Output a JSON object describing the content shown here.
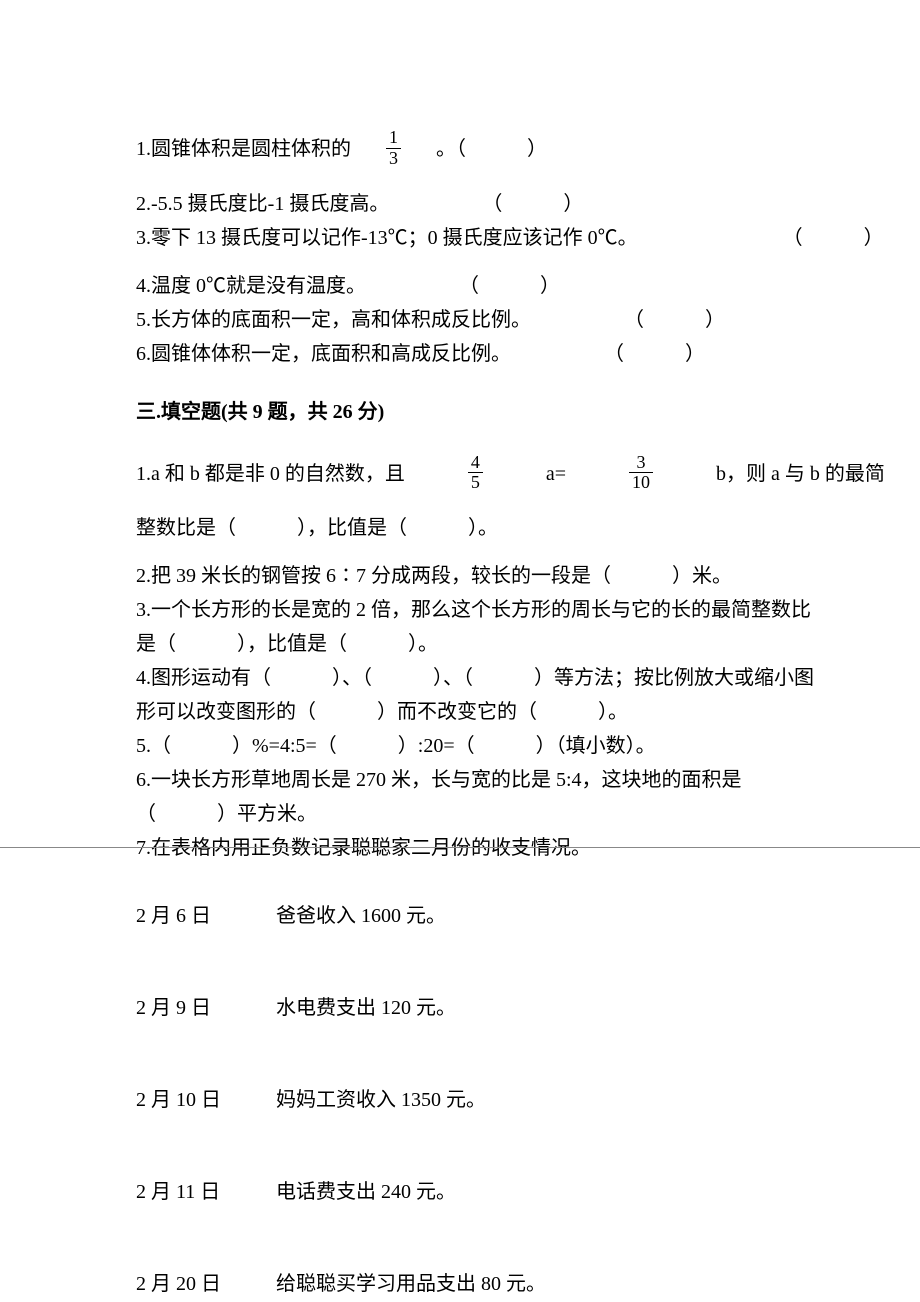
{
  "s2": {
    "q1_a": "1.圆锥体积是圆柱体积的",
    "q1_frac_num": "1",
    "q1_frac_den": "3",
    "q1_b": "。（",
    "q1_c": "）",
    "q2_a": "2.-5.5 摄氏度比-1 摄氏度高。",
    "q2_b": "（",
    "q2_c": "）",
    "q3_a": "3.零下 13 摄氏度可以记作-13℃；0 摄氏度应该记作 0℃。",
    "q3_b": "（",
    "q3_c": "）",
    "q4_a": "4.温度 0℃就是没有温度。",
    "q4_b": "（",
    "q4_c": "）",
    "q5_a": "5.长方体的底面积一定，高和体积成反比例。",
    "q5_b": "（",
    "q5_c": "）",
    "q6_a": "6.圆锥体体积一定，底面积和高成反比例。",
    "q6_b": "（",
    "q6_c": "）"
  },
  "s3": {
    "header": "三.填空题(共 9 题，共 26 分)",
    "q1_a": "1.a 和 b 都是非 0 的自然数，且",
    "q1_frac1_num": "4",
    "q1_frac1_den": "5",
    "q1_b": "a=",
    "q1_frac2_num": "3",
    "q1_frac2_den": "10",
    "q1_c": "b，则 a 与 b 的最简",
    "q1_d": "整数比是（",
    "q1_e": "），比值是（",
    "q1_f": "）。",
    "q2_a": "2.把 39 米长的钢管按 6∶7 分成两段，较长的一段是（",
    "q2_b": "）米。",
    "q3_a": "3.一个长方形的长是宽的 2 倍，那么这个长方形的周长与它的长的最简整数比",
    "q3_b": "是（",
    "q3_c": "），比值是（",
    "q3_d": "）。",
    "q4_a": "4.图形运动有（",
    "q4_b": "）、（",
    "q4_c": "）、（",
    "q4_d": "）等方法；按比例放大或缩小图",
    "q4_e": "形可以改变图形的（",
    "q4_f": "）而不改变它的（",
    "q4_g": "）。",
    "q5_a": "5.（",
    "q5_b": "）%=4:5=（",
    "q5_c": "）:20=（",
    "q5_d": "）（填小数）。",
    "q6_a": "6.一块长方形草地周长是 270 米，长与宽的比是 5:4，这块地的面积是",
    "q6_b": "（",
    "q6_c": "）平方米。",
    "q7": "7.在表格内用正负数记录聪聪家二月份的收支情况。",
    "entries": [
      {
        "date": "2 月 6 日",
        "text": "爸爸收入 1600 元。"
      },
      {
        "date": "2 月 9 日",
        "text": "水电费支出 120 元。"
      },
      {
        "date": "2 月 10 日",
        "text": "妈妈工资收入 1350 元。"
      },
      {
        "date": "2 月 11 日",
        "text": "电话费支出 240 元。"
      },
      {
        "date": "2 月 20 日",
        "text": "给聪聪买学习用品支出 80 元。"
      }
    ]
  }
}
